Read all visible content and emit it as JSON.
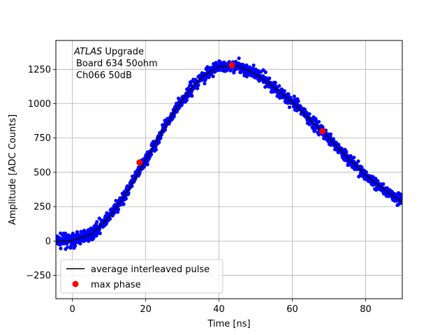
{
  "chart_data": {
    "type": "scatter",
    "title": "",
    "xlabel": "Time [ns]",
    "ylabel": "Amplitude [ADC Counts]",
    "xlim": [
      -4.5,
      90
    ],
    "ylim": [
      -420,
      1460
    ],
    "xticks": [
      0,
      20,
      40,
      60,
      80
    ],
    "yticks": [
      -250,
      0,
      250,
      500,
      750,
      1000,
      1250
    ],
    "grid": true,
    "legend_position": "bottom-left",
    "annotation": {
      "line1_italic": "ATLAS",
      "line1_rest": " Upgrade",
      "line2": "Board 634 50ohm",
      "line3": "Ch066 50dB"
    },
    "series": [
      {
        "name": "average interleaved pulse",
        "kind": "line",
        "color": "#000000",
        "x": [
          -4.5,
          0,
          5,
          10,
          15,
          20,
          25,
          30,
          35,
          40,
          45,
          50,
          55,
          60,
          65,
          70,
          75,
          80,
          85,
          90
        ],
        "y": [
          -5,
          5,
          45,
          170,
          360,
          590,
          820,
          1030,
          1190,
          1270,
          1275,
          1215,
          1120,
          1010,
          880,
          750,
          610,
          480,
          375,
          285
        ]
      },
      {
        "name": "",
        "kind": "scatter",
        "color": "#0000ff",
        "note": "dense cloud of samples scattered around the average pulse (±~50 ADC)"
      },
      {
        "name": "max phase",
        "kind": "scatter",
        "color": "#ff0000",
        "x": [
          18.3,
          43.5,
          68.2
        ],
        "y": [
          572,
          1280,
          800
        ]
      }
    ]
  }
}
